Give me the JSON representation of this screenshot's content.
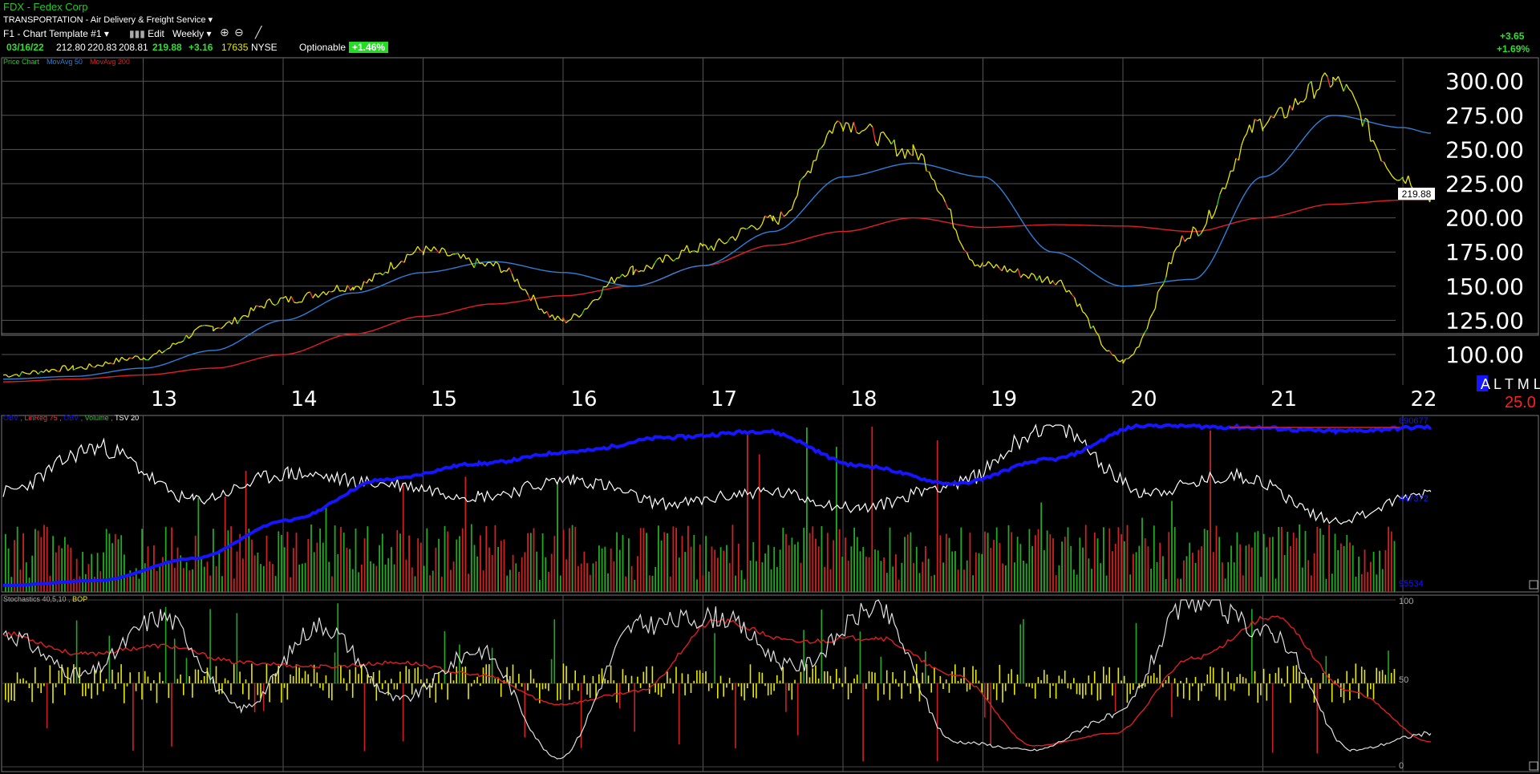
{
  "header": {
    "ticker_title": "FDX - Fedex Corp",
    "sector": "TRANSPORTATION - Air Delivery & Freight Service",
    "template_label": "F1 - Chart Template #1",
    "edit_label": "Edit",
    "period_label": "Weekly",
    "quote": {
      "date": "03/16/22",
      "open": "212.80",
      "high": "220.83",
      "low": "208.81",
      "close": "219.88",
      "change": "+3.16",
      "volume": "17635",
      "exchange": "NYSE"
    },
    "optionable_label": "Optionable",
    "pct_badge": "+1.46%",
    "right_change": "+3.65",
    "right_pct": "+1.69%",
    "legend_price": "Price Chart",
    "legend_ma50": "MovAvg 50",
    "legend_ma200": "MovAvg 200",
    "price_tag": "219.88",
    "altml_label": "A L T M L",
    "altml_value": "25.0"
  },
  "colors": {
    "price_up": "#33cc33",
    "price_down": "#ff3333",
    "price_main": "#e8e800",
    "ma50": "#2f7fd8",
    "ma200": "#e02020",
    "grid": "#555555",
    "obv": "#1515ff",
    "tsv": "#ffffff",
    "volume_up": "#22aa22",
    "volume_down": "#cc2222",
    "bop": "#e8e800",
    "stoch_fast": "#e0e0e0",
    "stoch_slow": "#dd2020"
  },
  "chart_data": [
    {
      "type": "line",
      "title": "FDX - Fedex Corp",
      "x_tick_labels": [
        "13",
        "14",
        "15",
        "16",
        "17",
        "18",
        "19",
        "20",
        "21",
        "22"
      ],
      "y_tick_labels": [
        "300.00",
        "275.00",
        "250.00",
        "225.00",
        "200.00",
        "175.00",
        "150.00",
        "125.00",
        "100.00"
      ],
      "ylim": [
        75,
        320
      ],
      "x": [
        2012.0,
        2012.5,
        2013.0,
        2013.5,
        2014.0,
        2014.5,
        2015.0,
        2015.5,
        2016.0,
        2016.5,
        2017.0,
        2017.5,
        2018.0,
        2018.5,
        2019.0,
        2019.5,
        2020.0,
        2020.5,
        2021.0,
        2021.5,
        2022.0,
        2022.2
      ],
      "series": [
        {
          "name": "Price Chart",
          "values": [
            85,
            90,
            98,
            120,
            140,
            150,
            176,
            165,
            125,
            162,
            178,
            198,
            270,
            248,
            165,
            155,
            95,
            190,
            270,
            300,
            230,
            216
          ]
        },
        {
          "name": "MovAvg 50",
          "values": [
            82,
            84,
            90,
            103,
            125,
            145,
            160,
            168,
            160,
            150,
            165,
            190,
            230,
            240,
            230,
            175,
            150,
            155,
            230,
            275,
            266,
            262
          ]
        },
        {
          "name": "MovAvg 200",
          "values": [
            80,
            82,
            85,
            90,
            100,
            115,
            128,
            137,
            143,
            150,
            165,
            180,
            190,
            200,
            193,
            195,
            194,
            190,
            200,
            210,
            213,
            213
          ]
        }
      ]
    },
    {
      "type": "line",
      "title": "OBV / LinReg 75 / Volume / TSV 20",
      "legend": [
        "OBV",
        "LinReg 75",
        "OBV",
        "Volume",
        "TSV 20"
      ],
      "y_tick_labels": [
        "890677",
        "447372",
        "95534"
      ],
      "series": [
        {
          "name": "OBV",
          "values": [
            95534,
            120000,
            230000,
            420000,
            620000,
            700000,
            760000,
            830000,
            860000,
            690000,
            600000,
            720000,
            890000,
            880000,
            860000,
            880000
          ]
        },
        {
          "name": "TSV 20",
          "values": [
            560000,
            780000,
            520000,
            650000,
            600000,
            540000,
            620000,
            500000,
            560000,
            480000,
            600000,
            890000,
            560000,
            640000,
            420000,
            560000
          ]
        }
      ]
    },
    {
      "type": "line",
      "title": "Stochastics 40,5,10 / BOP",
      "legend": [
        "Stochastics 40,5,10",
        "BOP"
      ],
      "y_tick_labels": [
        "100",
        "50",
        "0"
      ],
      "ylim": [
        0,
        100
      ],
      "series": [
        {
          "name": "Stochastics 40,5,10",
          "values": [
            80,
            55,
            90,
            35,
            85,
            40,
            70,
            5,
            85,
            90,
            60,
            95,
            15,
            10,
            30,
            100,
            80,
            10,
            20
          ]
        }
      ]
    }
  ]
}
